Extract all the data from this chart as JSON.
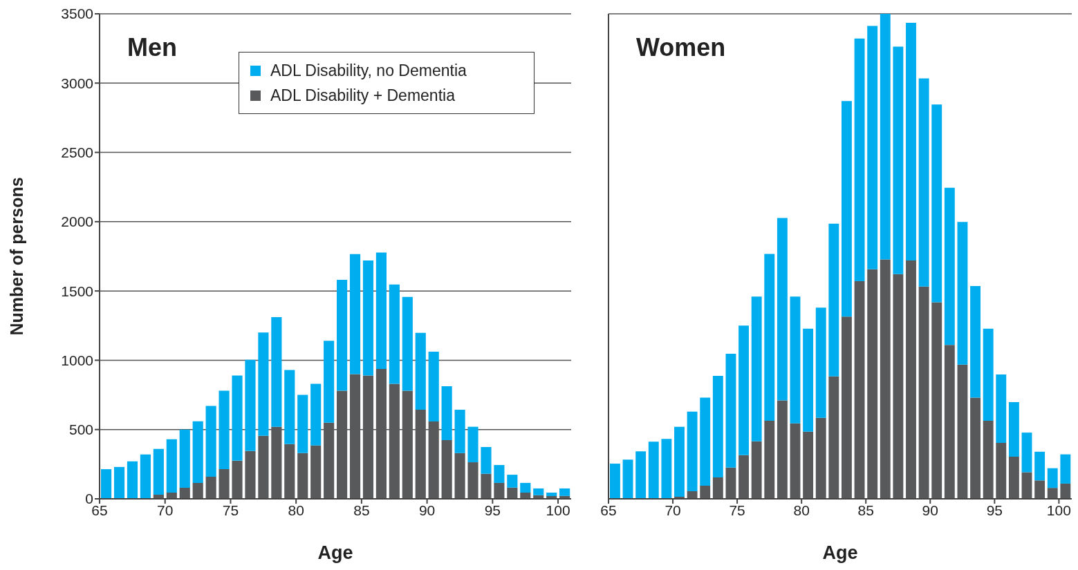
{
  "chart_data": [
    {
      "type": "bar",
      "title": "Men",
      "xlabel": "Age",
      "ylabel": "Number of persons",
      "stacked": true,
      "grid": "y",
      "legend": "top right",
      "x": [
        65.5,
        66.5,
        67.5,
        68.5,
        69.5,
        70.5,
        71.5,
        72.5,
        73.5,
        74.5,
        75.5,
        76.5,
        77.5,
        78.5,
        79.5,
        80.5,
        81.5,
        82.5,
        83.5,
        84.5,
        85.5,
        86.5,
        87.5,
        88.5,
        89.5,
        90.5,
        91.5,
        92.5,
        93.5,
        94.5,
        95.5,
        96.5,
        97.5,
        98.5,
        99.5,
        100.5
      ],
      "xlim": [
        65,
        101
      ],
      "xticks": [
        65,
        70,
        75,
        80,
        85,
        90,
        95,
        100
      ],
      "ylim": [
        0,
        3500
      ],
      "yticks": [
        0,
        500,
        1000,
        1500,
        2000,
        2500,
        3000,
        3500
      ],
      "series": [
        {
          "name": "ADL Disability + Dementia",
          "color": "#58595b",
          "values": [
            0,
            0,
            0,
            0,
            30,
            45,
            80,
            115,
            160,
            215,
            275,
            345,
            455,
            520,
            395,
            330,
            385,
            550,
            780,
            900,
            890,
            937,
            830,
            780,
            643,
            558,
            424,
            330,
            264,
            181,
            115,
            81,
            45,
            26,
            20,
            21
          ]
        },
        {
          "name": "ADL Disability, no Dementia",
          "color": "#00adef",
          "values": [
            214,
            230,
            270,
            320,
            330,
            385,
            420,
            445,
            510,
            565,
            615,
            658,
            745,
            791,
            535,
            420,
            445,
            590,
            800,
            866,
            830,
            840,
            717,
            677,
            555,
            504,
            389,
            313,
            256,
            193,
            129,
            93,
            70,
            49,
            25,
            54
          ]
        }
      ]
    },
    {
      "type": "bar",
      "title": "Women",
      "xlabel": "Age",
      "stacked": true,
      "grid": "y",
      "tick_labels": "x",
      "x": [
        65.5,
        66.5,
        67.5,
        68.5,
        69.5,
        70.5,
        71.5,
        72.5,
        73.5,
        74.5,
        75.5,
        76.5,
        77.5,
        78.5,
        79.5,
        80.5,
        81.5,
        82.5,
        83.5,
        84.5,
        85.5,
        86.5,
        87.5,
        88.5,
        89.5,
        90.5,
        91.5,
        92.5,
        93.5,
        94.5,
        95.5,
        96.5,
        97.5,
        98.5,
        99.5,
        100.5
      ],
      "xlim": [
        65,
        101
      ],
      "xticks": [
        65,
        70,
        75,
        80,
        85,
        90,
        95,
        100
      ],
      "ylim": [
        0,
        3500
      ],
      "yticks": [
        0,
        500,
        1000,
        1500,
        2000,
        2500,
        3000,
        3500
      ],
      "series": [
        {
          "color": "#58595b",
          "values": [
            0,
            0,
            0,
            0,
            0,
            15,
            55,
            95,
            155,
            225,
            315,
            415,
            563,
            710,
            545,
            485,
            585,
            884,
            1315,
            1570,
            1656,
            1727,
            1621,
            1720,
            1532,
            1419,
            1110,
            968,
            731,
            563,
            404,
            304,
            192,
            133,
            79,
            110
          ]
        },
        {
          "color": "#00adef",
          "values": [
            254,
            283,
            343,
            412,
            432,
            505,
            575,
            635,
            733,
            822,
            935,
            1045,
            1204,
            1317,
            915,
            743,
            795,
            1102,
            1555,
            1752,
            1757,
            1773,
            1642,
            1715,
            1502,
            1427,
            1135,
            1030,
            805,
            665,
            494,
            394,
            286,
            207,
            142,
            211
          ]
        }
      ]
    }
  ]
}
